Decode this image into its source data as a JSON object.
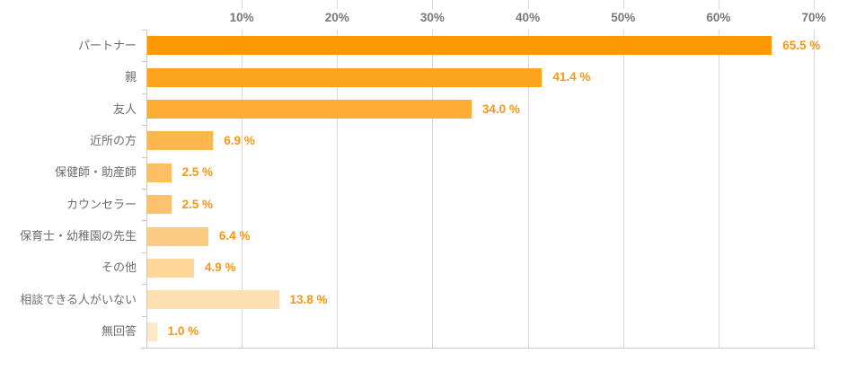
{
  "chart_data": {
    "type": "bar",
    "orientation": "horizontal",
    "title": "",
    "xlabel": "",
    "ylabel": "",
    "axis_range": [
      0,
      70
    ],
    "grid": true,
    "categories": [
      "パートナー",
      "親",
      "友人",
      "近所の方",
      "保健師・助産師",
      "カウンセラー",
      "保育士・幼稚園の先生",
      "その他",
      "相談できる人がいない",
      "無回答"
    ],
    "values": [
      65.5,
      41.4,
      34.0,
      6.9,
      2.5,
      2.5,
      6.4,
      4.9,
      13.8,
      1.0
    ],
    "value_labels": [
      "65.5 %",
      "41.4 %",
      "34.0 %",
      "6.9 %",
      "2.5 %",
      "2.5 %",
      "6.4 %",
      "4.9 %",
      "13.8 %",
      "1.0 %"
    ],
    "x_ticks": [
      "10%",
      "20%",
      "30%",
      "40%",
      "50%",
      "60%",
      "70%"
    ],
    "x_tick_values": [
      10,
      20,
      30,
      40,
      50,
      60,
      70
    ],
    "bar_colors": [
      "#fb9803",
      "#fca41d",
      "#fcad36",
      "#fdb74e",
      "#fdbf63",
      "#fdc26d",
      "#fdcc84",
      "#fed69a",
      "#fedfb1",
      "#fee8c8"
    ],
    "value_label_color": "#f89711",
    "tick_label_color": "#77787b",
    "category_label_color": "#6c6d70",
    "gridline_color": "#d9dadb",
    "axis_line_color": "#c7c8ca"
  }
}
